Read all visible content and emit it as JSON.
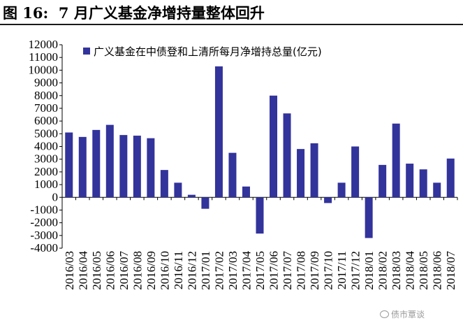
{
  "figure": {
    "title": "图 16:  7 月广义基金净增持量整体回升"
  },
  "chart_data": {
    "type": "bar",
    "legend": "广义基金在中债登和上清所每月净增持总量(亿元)",
    "legend_position": "top-left",
    "bar_color": "#33339c",
    "ylim": [
      -4000,
      12000
    ],
    "yticks": [
      12000,
      11000,
      10000,
      9000,
      8000,
      7000,
      6000,
      5000,
      4000,
      3000,
      2000,
      1000,
      0,
      -1000,
      -2000,
      -3000,
      -4000
    ],
    "grid": false,
    "categories": [
      "2016/03",
      "2016/04",
      "2016/05",
      "2016/06",
      "2016/07",
      "2016/08",
      "2016/09",
      "2016/10",
      "2016/11",
      "2016/12",
      "2017/01",
      "2017/02",
      "2017/03",
      "2017/04",
      "2017/05",
      "2017/06",
      "2017/07",
      "2017/08",
      "2017/09",
      "2017/10",
      "2017/11",
      "2017/12",
      "2018/01",
      "2018/02",
      "2018/03",
      "2018/04",
      "2018/05",
      "2018/06",
      "2018/07"
    ],
    "values": [
      5100,
      4750,
      5300,
      5700,
      4900,
      4850,
      4650,
      2150,
      1150,
      200,
      -900,
      10300,
      3500,
      850,
      -2850,
      8000,
      6600,
      3800,
      4250,
      -450,
      1150,
      4000,
      -3200,
      2550,
      5800,
      2650,
      2200,
      1150,
      3050
    ]
  },
  "watermark": {
    "text": "债市覃谈",
    "icon": "wechat-icon"
  }
}
